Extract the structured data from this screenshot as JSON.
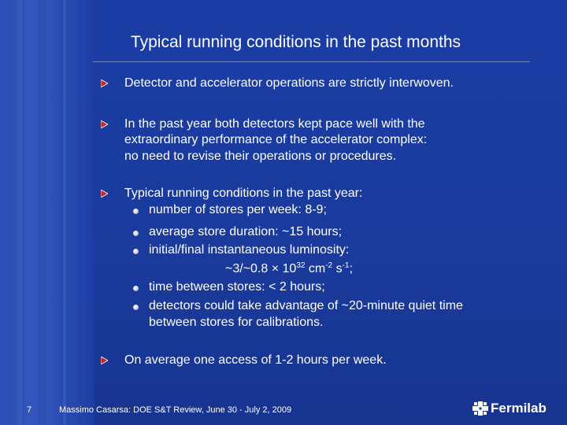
{
  "slide": {
    "title": "Typical running conditions in the past months",
    "bullets": [
      "Detector and accelerator operations are strictly interwoven.",
      "In the past year both detectors kept pace well with the",
      "extraordinary performance of the accelerator complex:",
      "no need to revise their operations or procedures.",
      "Typical running conditions in the past year:",
      "On average one access of 1-2 hours per week."
    ],
    "sub_bullets": [
      "number of stores per week: 8-9;",
      "average store duration: ~15 hours;",
      "initial/final instantaneous luminosity:",
      "time between stores: < 2 hours;",
      "detectors could take advantage of ~20-minute quiet time",
      "between stores for calibrations."
    ],
    "luminosity": {
      "prefix": "~3/~0.8 × 10",
      "exp1": "32",
      "unit1": " cm",
      "exp2": "-2",
      "unit2": " s",
      "exp3": "-1",
      "suffix": ";"
    }
  },
  "footer": {
    "page_number": "7",
    "citation": "Massimo Casarsa: DOE S&T Review, June 30 - July 2, 2009"
  },
  "logo": {
    "text": "Fermilab",
    "icon": "fermilab-logo-icon"
  },
  "colors": {
    "background": "#1a3a9e",
    "arrow_red": "#c8232c",
    "text": "#ffffff"
  }
}
